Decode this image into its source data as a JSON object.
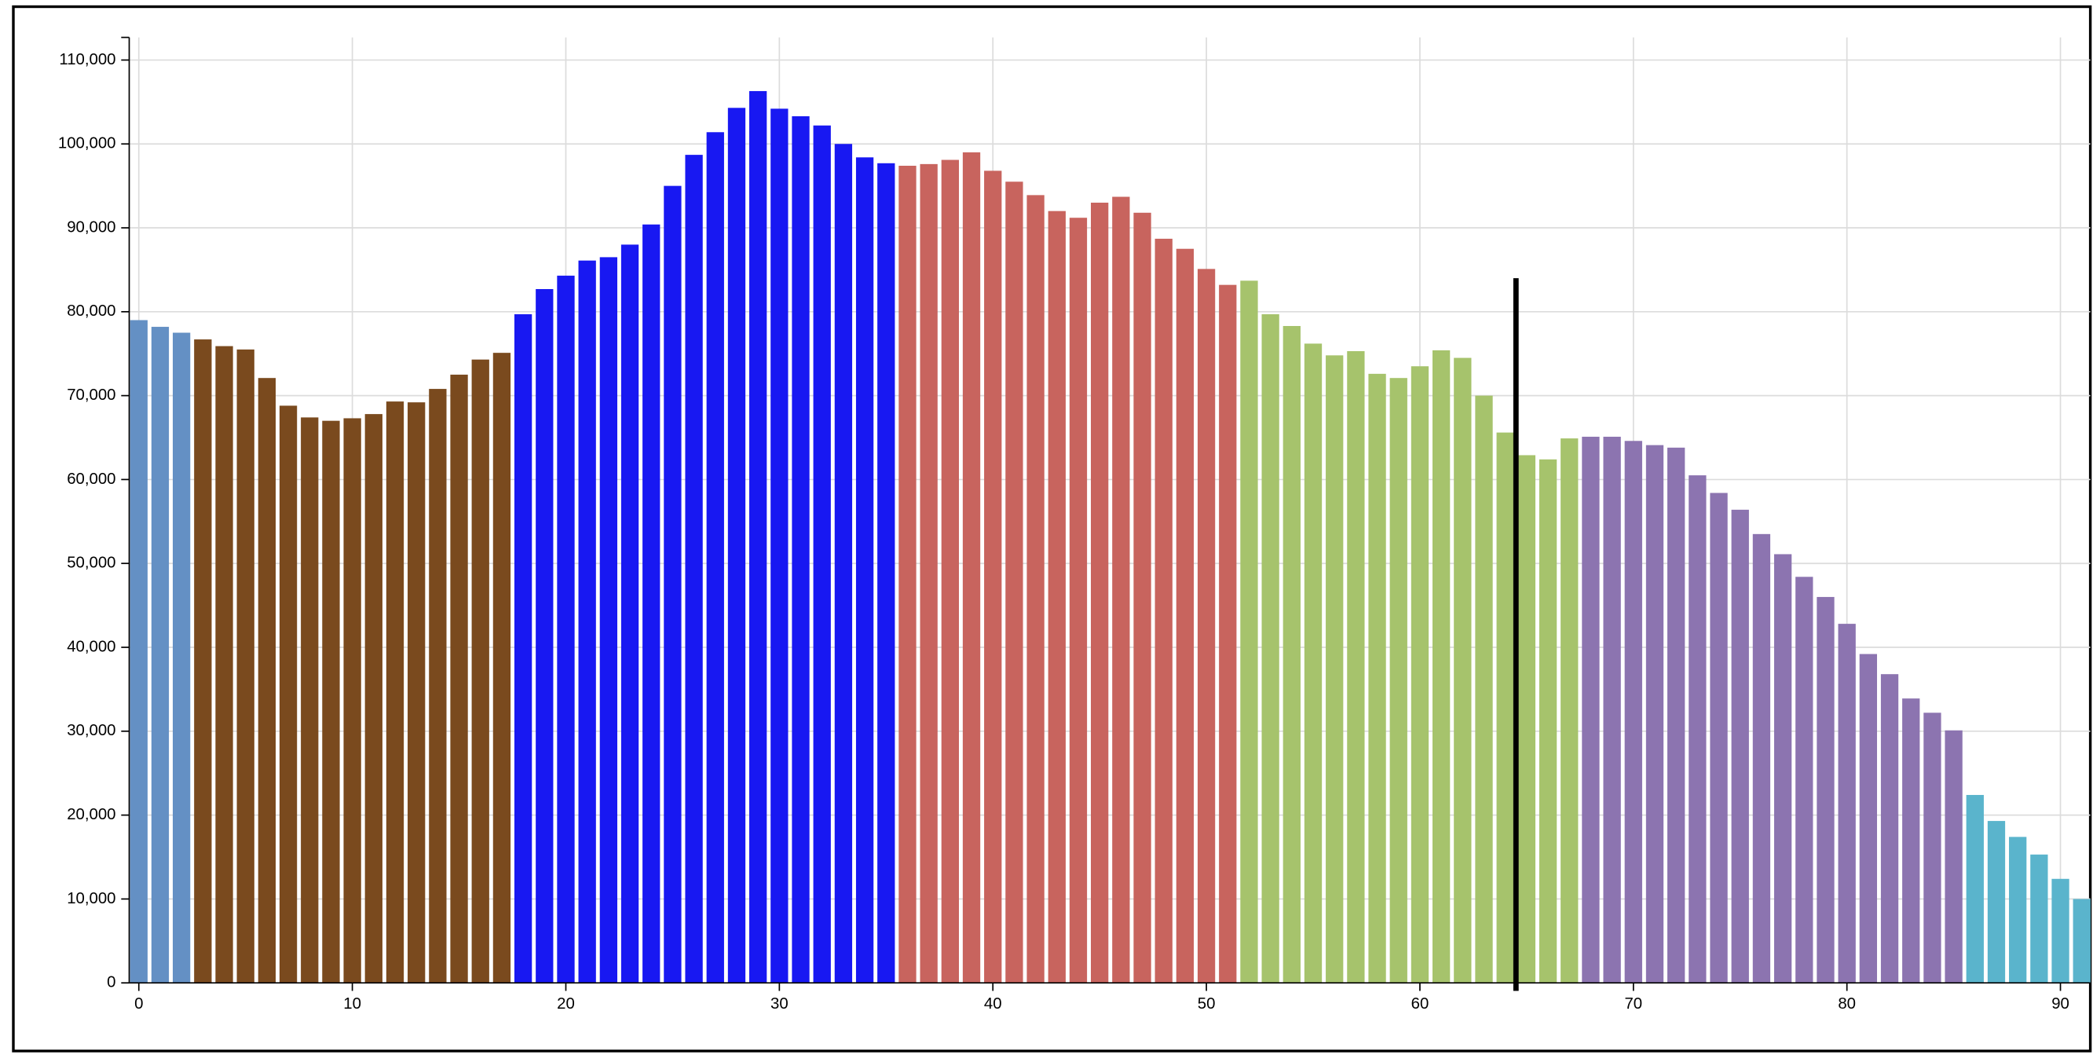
{
  "chart_data": {
    "type": "bar",
    "categories": [
      0,
      1,
      2,
      3,
      4,
      5,
      6,
      7,
      8,
      9,
      10,
      11,
      12,
      13,
      14,
      15,
      16,
      17,
      18,
      19,
      20,
      21,
      22,
      23,
      24,
      25,
      26,
      27,
      28,
      29,
      30,
      31,
      32,
      33,
      34,
      35,
      36,
      37,
      38,
      39,
      40,
      41,
      42,
      43,
      44,
      45,
      46,
      47,
      48,
      49,
      50,
      51,
      52,
      53,
      54,
      55,
      56,
      57,
      58,
      59,
      60,
      61,
      62,
      63,
      64,
      65,
      66,
      67,
      68,
      69,
      70,
      71,
      72,
      73,
      74,
      75,
      76,
      77,
      78,
      79,
      80,
      81,
      82,
      83,
      84,
      85,
      86,
      87,
      88,
      89,
      90,
      91
    ],
    "values": [
      79000,
      78200,
      77500,
      76700,
      75900,
      75500,
      72100,
      68800,
      67400,
      67000,
      67300,
      67800,
      69300,
      69200,
      70800,
      72500,
      74300,
      75100,
      79700,
      82700,
      84300,
      86100,
      86500,
      88000,
      90400,
      95000,
      98700,
      101400,
      104300,
      106300,
      104200,
      103300,
      102200,
      100000,
      98400,
      97700,
      97400,
      97600,
      98100,
      99000,
      96800,
      95500,
      93900,
      92000,
      91200,
      93000,
      93700,
      91800,
      88700,
      87500,
      85100,
      83200,
      83700,
      79700,
      78300,
      76200,
      74800,
      75300,
      72600,
      72100,
      73500,
      75400,
      74500,
      70000,
      65600,
      62900,
      62400,
      64900,
      65100,
      65100,
      64600,
      64100,
      63800,
      60500,
      58400,
      56400,
      53500,
      51100,
      48400,
      46000,
      42800,
      39200,
      36800,
      33900,
      32200,
      30100,
      22400,
      19300,
      17400,
      15300,
      12400,
      10000
    ],
    "colors": [
      "#6490c4",
      "#6490c4",
      "#6490c4",
      "#7a4a1e",
      "#7a4a1e",
      "#7a4a1e",
      "#7a4a1e",
      "#7a4a1e",
      "#7a4a1e",
      "#7a4a1e",
      "#7a4a1e",
      "#7a4a1e",
      "#7a4a1e",
      "#7a4a1e",
      "#7a4a1e",
      "#7a4a1e",
      "#7a4a1e",
      "#7a4a1e",
      "#1818f2",
      "#1818f2",
      "#1818f2",
      "#1818f2",
      "#1818f2",
      "#1818f2",
      "#1818f2",
      "#1818f2",
      "#1818f2",
      "#1818f2",
      "#1818f2",
      "#1818f2",
      "#1818f2",
      "#1818f2",
      "#1818f2",
      "#1818f2",
      "#1818f2",
      "#1818f2",
      "#c8645e",
      "#c8645e",
      "#c8645e",
      "#c8645e",
      "#c8645e",
      "#c8645e",
      "#c8645e",
      "#c8645e",
      "#c8645e",
      "#c8645e",
      "#c8645e",
      "#c8645e",
      "#c8645e",
      "#c8645e",
      "#c8645e",
      "#c8645e",
      "#a6c36c",
      "#a6c36c",
      "#a6c36c",
      "#a6c36c",
      "#a6c36c",
      "#a6c36c",
      "#a6c36c",
      "#a6c36c",
      "#a6c36c",
      "#a6c36c",
      "#a6c36c",
      "#a6c36c",
      "#a6c36c",
      "#a6c36c",
      "#a6c36c",
      "#a6c36c",
      "#8c74b0",
      "#8c74b0",
      "#8c74b0",
      "#8c74b0",
      "#8c74b0",
      "#8c74b0",
      "#8c74b0",
      "#8c74b0",
      "#8c74b0",
      "#8c74b0",
      "#8c74b0",
      "#8c74b0",
      "#8c74b0",
      "#8c74b0",
      "#8c74b0",
      "#8c74b0",
      "#8c74b0",
      "#8c74b0",
      "#5ab4cc",
      "#5ab4cc",
      "#5ab4cc",
      "#5ab4cc",
      "#5ab4cc",
      "#5ab4cc"
    ],
    "xlim": [
      -0.45,
      91.4
    ],
    "xticks": [
      0,
      10,
      20,
      30,
      40,
      50,
      60,
      70,
      80,
      90
    ],
    "ylim": [
      0,
      112700
    ],
    "yticks": [
      0,
      {
        "value": 10000,
        "label": "10,000"
      },
      {
        "value": 20000,
        "label": "20,000"
      },
      {
        "value": 30000,
        "label": "30,000"
      },
      {
        "value": 40000,
        "label": "40,000"
      },
      {
        "value": 50000,
        "label": "50,000"
      },
      {
        "value": 60000,
        "label": "60,000"
      },
      {
        "value": 70000,
        "label": "70,000"
      },
      {
        "value": 80000,
        "label": "80,000"
      },
      {
        "value": 90000,
        "label": "90,000"
      },
      {
        "value": 100000,
        "label": "100,000"
      },
      {
        "value": 110000,
        "label": "110,000"
      }
    ],
    "grid": true,
    "marker": {
      "x": 64.5,
      "y": 84000,
      "color": "#000000"
    }
  }
}
